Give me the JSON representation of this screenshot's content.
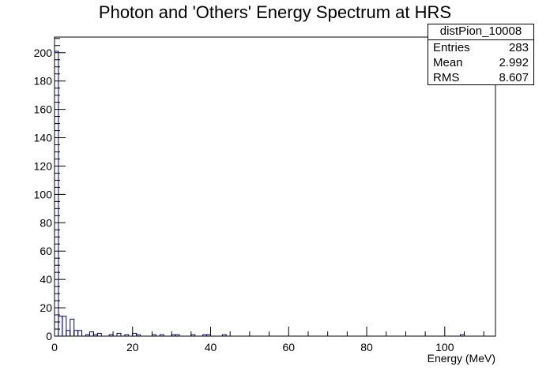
{
  "chart_data": {
    "type": "histogram",
    "title": "Photon and 'Others' Energy Spectrum at HRS",
    "xlabel": "Energy (MeV)",
    "ylabel": "",
    "xlim": [
      0,
      113
    ],
    "ylim": [
      0,
      211
    ],
    "x_ticks": [
      0,
      20,
      40,
      60,
      80,
      100
    ],
    "y_ticks": [
      0,
      20,
      40,
      60,
      80,
      100,
      120,
      140,
      160,
      180,
      200
    ],
    "grid": false,
    "bin_width": 1,
    "bins": [
      {
        "x0": 0,
        "x1": 1,
        "count": 201
      },
      {
        "x0": 1,
        "x1": 2,
        "count": 14
      },
      {
        "x0": 2,
        "x1": 3,
        "count": 14
      },
      {
        "x0": 3,
        "x1": 4,
        "count": 4
      },
      {
        "x0": 4,
        "x1": 5,
        "count": 12
      },
      {
        "x0": 5,
        "x1": 6,
        "count": 4
      },
      {
        "x0": 6,
        "x1": 7,
        "count": 4
      },
      {
        "x0": 8,
        "x1": 9,
        "count": 1
      },
      {
        "x0": 9,
        "x1": 10,
        "count": 3
      },
      {
        "x0": 10,
        "x1": 11,
        "count": 1
      },
      {
        "x0": 11,
        "x1": 12,
        "count": 2
      },
      {
        "x0": 14,
        "x1": 15,
        "count": 1
      },
      {
        "x0": 16,
        "x1": 17,
        "count": 2
      },
      {
        "x0": 18,
        "x1": 19,
        "count": 1
      },
      {
        "x0": 20,
        "x1": 21,
        "count": 2
      },
      {
        "x0": 21,
        "x1": 22,
        "count": 1
      },
      {
        "x0": 25,
        "x1": 26,
        "count": 1
      },
      {
        "x0": 27,
        "x1": 28,
        "count": 1
      },
      {
        "x0": 30,
        "x1": 31,
        "count": 1
      },
      {
        "x0": 31,
        "x1": 32,
        "count": 1
      },
      {
        "x0": 35,
        "x1": 36,
        "count": 1
      },
      {
        "x0": 38,
        "x1": 39,
        "count": 1
      },
      {
        "x0": 39,
        "x1": 40,
        "count": 1
      },
      {
        "x0": 43,
        "x1": 44,
        "count": 1
      },
      {
        "x0": 104,
        "x1": 105,
        "count": 1
      }
    ],
    "stats": {
      "name": "distPion_10008",
      "rows": [
        {
          "label": "Entries",
          "value": "283"
        },
        {
          "label": "Mean",
          "value": "2.992"
        },
        {
          "label": "RMS",
          "value": "8.607"
        }
      ]
    },
    "colors": {
      "line": "#000080",
      "frame": "#000000"
    }
  }
}
